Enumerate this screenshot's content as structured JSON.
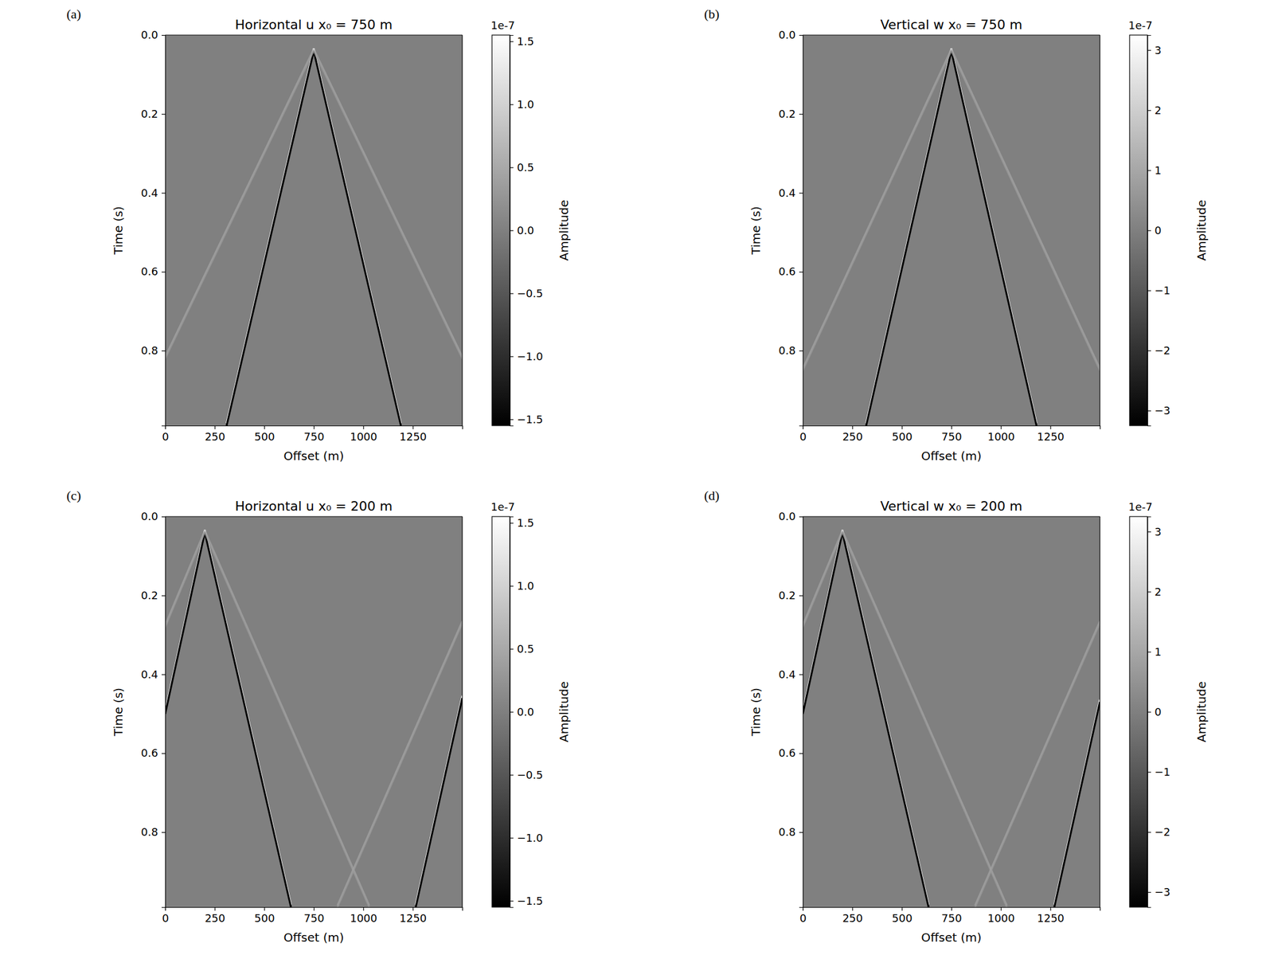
{
  "chart_data": [
    {
      "type": "line",
      "panel_label": "(a)",
      "title": "Horizontal u  x₀ = 750 m",
      "x_label": "Offset (m)",
      "y_label": "Time (s)",
      "xlim": [
        0,
        1500
      ],
      "ylim": [
        0,
        0.99
      ],
      "xticks": [
        0,
        250,
        500,
        750,
        1000,
        1250
      ],
      "yticks": [
        {
          "value": 0,
          "label": "0.0"
        },
        0.2,
        0.4,
        0.6,
        0.8
      ],
      "series": [
        {
          "color": "#000000",
          "x": [
            750,
            310
          ],
          "values": [
            0.04,
            0.99
          ]
        },
        {
          "color": "#000000",
          "x": [
            750,
            1190
          ],
          "values": [
            0.04,
            0.99
          ]
        },
        {
          "color": "#9a9a9a",
          "x": [
            750,
            0
          ],
          "values": [
            0.04,
            0.82
          ]
        },
        {
          "color": "#9a9a9a",
          "x": [
            750,
            1500
          ],
          "values": [
            0.04,
            0.82
          ]
        }
      ],
      "colorbar": {
        "label": "Amplitude",
        "offset_label": "1e-7",
        "range": [
          -1.55e-07,
          1.55e-07
        ],
        "ticks": [
          {
            "value": -1.5e-07,
            "label": "−1.5"
          },
          {
            "value": -1e-07,
            "label": "−1.0"
          },
          {
            "value": -5e-08,
            "label": "−0.5"
          },
          {
            "value": 0,
            "label": "0.0"
          },
          {
            "value": 5e-08,
            "label": "0.5"
          },
          {
            "value": 1e-07,
            "label": "1.0"
          },
          {
            "value": 1.5e-07,
            "label": "1.5"
          }
        ]
      }
    },
    {
      "type": "line",
      "panel_label": "(b)",
      "title": "Vertical w  x₀ = 750 m",
      "x_label": "Offset (m)",
      "y_label": "Time (s)",
      "xlim": [
        0,
        1500
      ],
      "ylim": [
        0,
        0.99
      ],
      "xticks": [
        0,
        250,
        500,
        750,
        1000,
        1250
      ],
      "yticks": [
        {
          "value": 0,
          "label": "0.0"
        },
        0.2,
        0.4,
        0.6,
        0.8
      ],
      "series": [
        {
          "color": "#000000",
          "x": [
            750,
            320
          ],
          "values": [
            0.04,
            0.99
          ]
        },
        {
          "color": "#000000",
          "x": [
            750,
            1180
          ],
          "values": [
            0.04,
            0.99
          ]
        },
        {
          "color": "#9a9a9a",
          "x": [
            750,
            0
          ],
          "values": [
            0.04,
            0.85
          ]
        },
        {
          "color": "#9a9a9a",
          "x": [
            750,
            1500
          ],
          "values": [
            0.04,
            0.85
          ]
        }
      ],
      "colorbar": {
        "label": "Amplitude",
        "offset_label": "1e-7",
        "range": [
          -3.25e-07,
          3.25e-07
        ],
        "ticks": [
          {
            "value": -3e-07,
            "label": "−3"
          },
          {
            "value": -2e-07,
            "label": "−2"
          },
          {
            "value": -1e-07,
            "label": "−1"
          },
          0,
          {
            "value": 1e-07,
            "label": "1"
          },
          {
            "value": 2e-07,
            "label": "2"
          },
          {
            "value": 3e-07,
            "label": "3"
          }
        ]
      }
    },
    {
      "type": "line",
      "panel_label": "(c)",
      "title": "Horizontal u  x₀ = 200 m",
      "x_label": "Offset (m)",
      "y_label": "Time (s)",
      "xlim": [
        0,
        1500
      ],
      "ylim": [
        0,
        0.99
      ],
      "xticks": [
        0,
        250,
        500,
        750,
        1000,
        1250
      ],
      "yticks": [
        {
          "value": 0,
          "label": "0.0"
        },
        0.2,
        0.4,
        0.6,
        0.8
      ],
      "series": [
        {
          "color": "#000000",
          "x": [
            200,
            0
          ],
          "values": [
            0.04,
            0.5
          ]
        },
        {
          "color": "#000000",
          "x": [
            200,
            635
          ],
          "values": [
            0.04,
            0.99
          ]
        },
        {
          "color": "#000000",
          "x": [
            1500,
            1265
          ],
          "values": [
            0.46,
            0.99
          ]
        },
        {
          "color": "#9a9a9a",
          "x": [
            200,
            0
          ],
          "values": [
            0.04,
            0.28
          ]
        },
        {
          "color": "#9a9a9a",
          "x": [
            200,
            1030
          ],
          "values": [
            0.04,
            0.99
          ]
        },
        {
          "color": "#9a9a9a",
          "x": [
            1500,
            870
          ],
          "values": [
            0.27,
            0.99
          ]
        }
      ],
      "colorbar": {
        "label": "Amplitude",
        "offset_label": "1e-7",
        "range": [
          -1.55e-07,
          1.55e-07
        ],
        "ticks": [
          {
            "value": -1.5e-07,
            "label": "−1.5"
          },
          {
            "value": -1e-07,
            "label": "−1.0"
          },
          {
            "value": -5e-08,
            "label": "−0.5"
          },
          {
            "value": 0,
            "label": "0.0"
          },
          {
            "value": 5e-08,
            "label": "0.5"
          },
          {
            "value": 1e-07,
            "label": "1.0"
          },
          {
            "value": 1.5e-07,
            "label": "1.5"
          }
        ]
      }
    },
    {
      "type": "line",
      "panel_label": "(d)",
      "title": "Vertical w  x₀ = 200 m",
      "x_label": "Offset (m)",
      "y_label": "Time (s)",
      "xlim": [
        0,
        1500
      ],
      "ylim": [
        0,
        0.99
      ],
      "xticks": [
        0,
        250,
        500,
        750,
        1000,
        1250
      ],
      "yticks": [
        {
          "value": 0,
          "label": "0.0"
        },
        0.2,
        0.4,
        0.6,
        0.8
      ],
      "series": [
        {
          "color": "#000000",
          "x": [
            200,
            0
          ],
          "values": [
            0.04,
            0.5
          ]
        },
        {
          "color": "#000000",
          "x": [
            200,
            635
          ],
          "values": [
            0.04,
            0.99
          ]
        },
        {
          "color": "#000000",
          "x": [
            1500,
            1270
          ],
          "values": [
            0.47,
            0.99
          ]
        },
        {
          "color": "#9a9a9a",
          "x": [
            200,
            0
          ],
          "values": [
            0.04,
            0.28
          ]
        },
        {
          "color": "#9a9a9a",
          "x": [
            200,
            1030
          ],
          "values": [
            0.04,
            0.99
          ]
        },
        {
          "color": "#9a9a9a",
          "x": [
            1500,
            870
          ],
          "values": [
            0.27,
            0.99
          ]
        }
      ],
      "colorbar": {
        "label": "Amplitude",
        "offset_label": "1e-7",
        "range": [
          -3.25e-07,
          3.25e-07
        ],
        "ticks": [
          {
            "value": -3e-07,
            "label": "−3"
          },
          {
            "value": -2e-07,
            "label": "−2"
          },
          {
            "value": -1e-07,
            "label": "−1"
          },
          0,
          {
            "value": 1e-07,
            "label": "1"
          },
          {
            "value": 2e-07,
            "label": "2"
          },
          {
            "value": 3e-07,
            "label": "3"
          }
        ]
      }
    }
  ]
}
